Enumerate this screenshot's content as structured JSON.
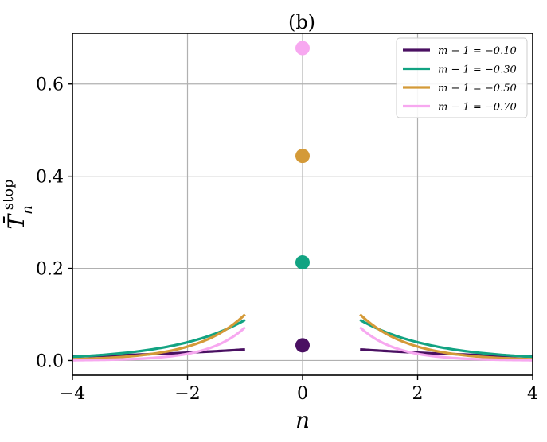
{
  "chart_data": {
    "type": "line",
    "title": "(b)",
    "xlabel": "n",
    "ylabel": "T̄",
    "ylabel_sup": "stop",
    "ylabel_sub": "n",
    "xlim": [
      -4,
      4
    ],
    "ylim": [
      -0.032,
      0.71
    ],
    "xticks": [
      -4,
      -2,
      0,
      2,
      4
    ],
    "xtick_labels": [
      "−4",
      "−2",
      "0",
      "2",
      "4"
    ],
    "yticks": [
      0.0,
      0.2,
      0.4,
      0.6
    ],
    "ytick_labels": [
      "0.0",
      "0.2",
      "0.4",
      "0.6"
    ],
    "grid": true,
    "legend_position": "top-right",
    "series": [
      {
        "name": "m − 1 = −0.10",
        "color": "#4a1062",
        "left_curve": {
          "x_start": -4,
          "x_end": -1,
          "y_at_minus1": 0.024,
          "decay": 0.34
        },
        "center_point": {
          "x": 0,
          "y": 0.033
        }
      },
      {
        "name": "m − 1 = −0.30",
        "color": "#12a382",
        "left_curve": {
          "x_start": -4,
          "x_end": -1,
          "y_at_minus1": 0.088,
          "decay": 0.8
        },
        "center_point": {
          "x": 0,
          "y": 0.213
        }
      },
      {
        "name": "m − 1 = −0.50",
        "color": "#d49a38",
        "left_curve": {
          "x_start": -4,
          "x_end": -1,
          "y_at_minus1": 0.1,
          "decay": 1.2
        },
        "center_point": {
          "x": 0,
          "y": 0.444
        }
      },
      {
        "name": "m − 1 = −0.70",
        "color": "#f7a8f0",
        "left_curve": {
          "x_start": -4,
          "x_end": -1,
          "y_at_minus1": 0.072,
          "decay": 1.6
        },
        "center_point": {
          "x": 0,
          "y": 0.678
        }
      }
    ]
  }
}
